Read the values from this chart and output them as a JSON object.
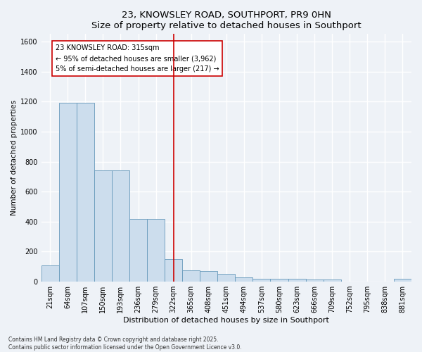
{
  "title": "23, KNOWSLEY ROAD, SOUTHPORT, PR9 0HN",
  "subtitle": "Size of property relative to detached houses in Southport",
  "xlabel": "Distribution of detached houses by size in Southport",
  "ylabel": "Number of detached properties",
  "categories": [
    "21sqm",
    "64sqm",
    "107sqm",
    "150sqm",
    "193sqm",
    "236sqm",
    "279sqm",
    "322sqm",
    "365sqm",
    "408sqm",
    "451sqm",
    "494sqm",
    "537sqm",
    "580sqm",
    "623sqm",
    "666sqm",
    "709sqm",
    "752sqm",
    "795sqm",
    "838sqm",
    "881sqm"
  ],
  "values": [
    110,
    1190,
    1190,
    740,
    740,
    420,
    420,
    150,
    75,
    70,
    50,
    30,
    18,
    18,
    18,
    15,
    15,
    0,
    0,
    0,
    20
  ],
  "bar_color": "#ccdded",
  "bar_edge_color": "#6699bb",
  "vline_color": "#cc0000",
  "ylim": [
    0,
    1650
  ],
  "yticks": [
    0,
    200,
    400,
    600,
    800,
    1000,
    1200,
    1400,
    1600
  ],
  "annotation_text": "23 KNOWSLEY ROAD: 315sqm\n← 95% of detached houses are smaller (3,962)\n5% of semi-detached houses are larger (217) →",
  "annotation_box_color": "#ffffff",
  "annotation_box_edge": "#cc0000",
  "footer1": "Contains HM Land Registry data © Crown copyright and database right 2025.",
  "footer2": "Contains public sector information licensed under the Open Government Licence v3.0.",
  "bg_color": "#eef2f7",
  "grid_color": "#ffffff",
  "title_fontsize": 9.5,
  "subtitle_fontsize": 8.5,
  "ylabel_fontsize": 7.5,
  "xlabel_fontsize": 8,
  "tick_fontsize": 7,
  "ann_fontsize": 7,
  "footer_fontsize": 5.5
}
